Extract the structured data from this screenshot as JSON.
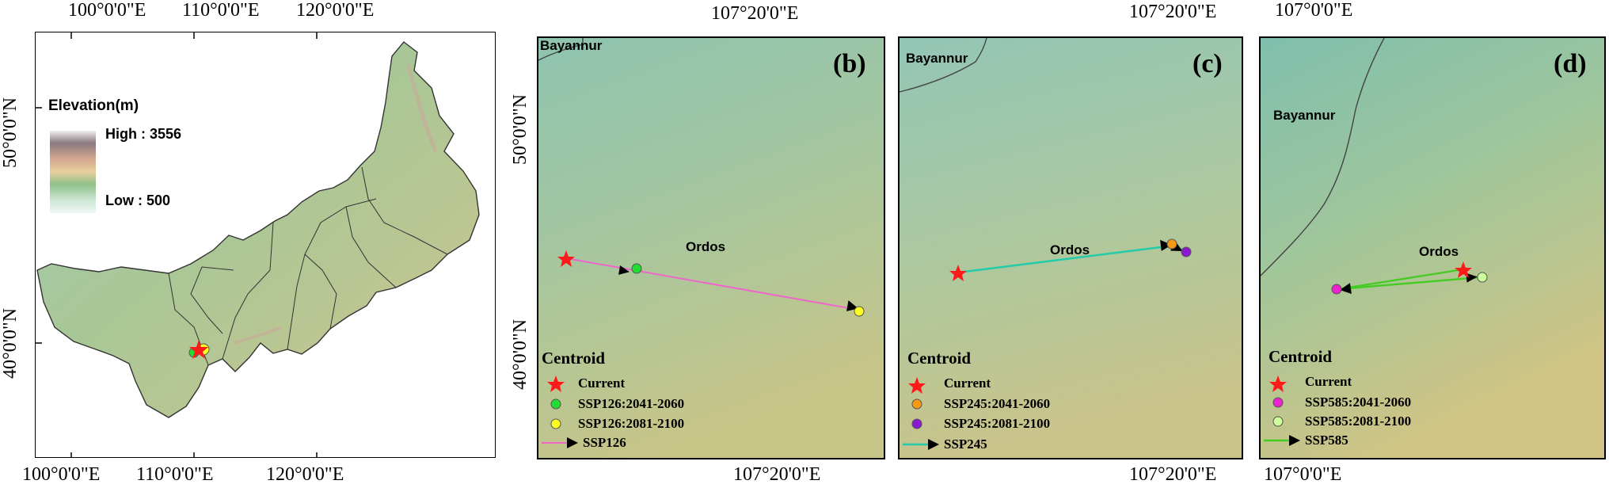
{
  "panel_a": {
    "lon_labels": [
      "100°0'0\"E",
      "110°0'0\"E",
      "120°0'0\"E"
    ],
    "lat_labels": [
      "50°0'0\"N",
      "40°0'0\"N"
    ],
    "legend_title": "Elevation(m)",
    "high_label": "High : 3556",
    "low_label": "Low : 500",
    "colors": {
      "ramp": [
        "#8a7a80",
        "#c9a99a",
        "#e3c8a0",
        "#b6d2a0",
        "#8fc08a",
        "#cfe8d8",
        "#e6f4ee"
      ]
    }
  },
  "panel_b": {
    "label": "(b)",
    "lon_label": "107°20'0\"E",
    "lat_labels": [
      "50°0'0\"N",
      "40°0'0\"N"
    ],
    "city_top": "Bayannur",
    "city_mid": "Ordos",
    "legend_title": "Centroid",
    "legend": [
      "Current",
      "SSP126:2041-2060",
      "SSP126:2081-2100",
      "SSP126"
    ],
    "colors": {
      "current": "#ff1a1a",
      "p1": "#22dd33",
      "p2": "#ffff22",
      "arrow": "#ee66cc"
    }
  },
  "panel_c": {
    "label": "(c)",
    "lon_label": "107°20'0\"E",
    "city_top": "Bayannur",
    "city_mid": "Ordos",
    "legend_title": "Centroid",
    "legend": [
      "Current",
      "SSP245:2041-2060",
      "SSP245:2081-2100",
      "SSP245"
    ],
    "colors": {
      "current": "#ff1a1a",
      "p1": "#f59a12",
      "p2": "#8a1ad0",
      "arrow": "#22ccaa"
    }
  },
  "panel_d": {
    "label": "(d)",
    "lon_label": "107°0'0\"E",
    "city_top": "Bayannur",
    "city_mid": "Ordos",
    "legend_title": "Centroid",
    "legend": [
      "Current",
      "SSP585:2041-2060",
      "SSP585:2081-2100",
      "SSP585"
    ],
    "colors": {
      "current": "#ff1a1a",
      "p1": "#ee22cc",
      "p2": "#ccff99",
      "arrow": "#44cc22"
    }
  }
}
